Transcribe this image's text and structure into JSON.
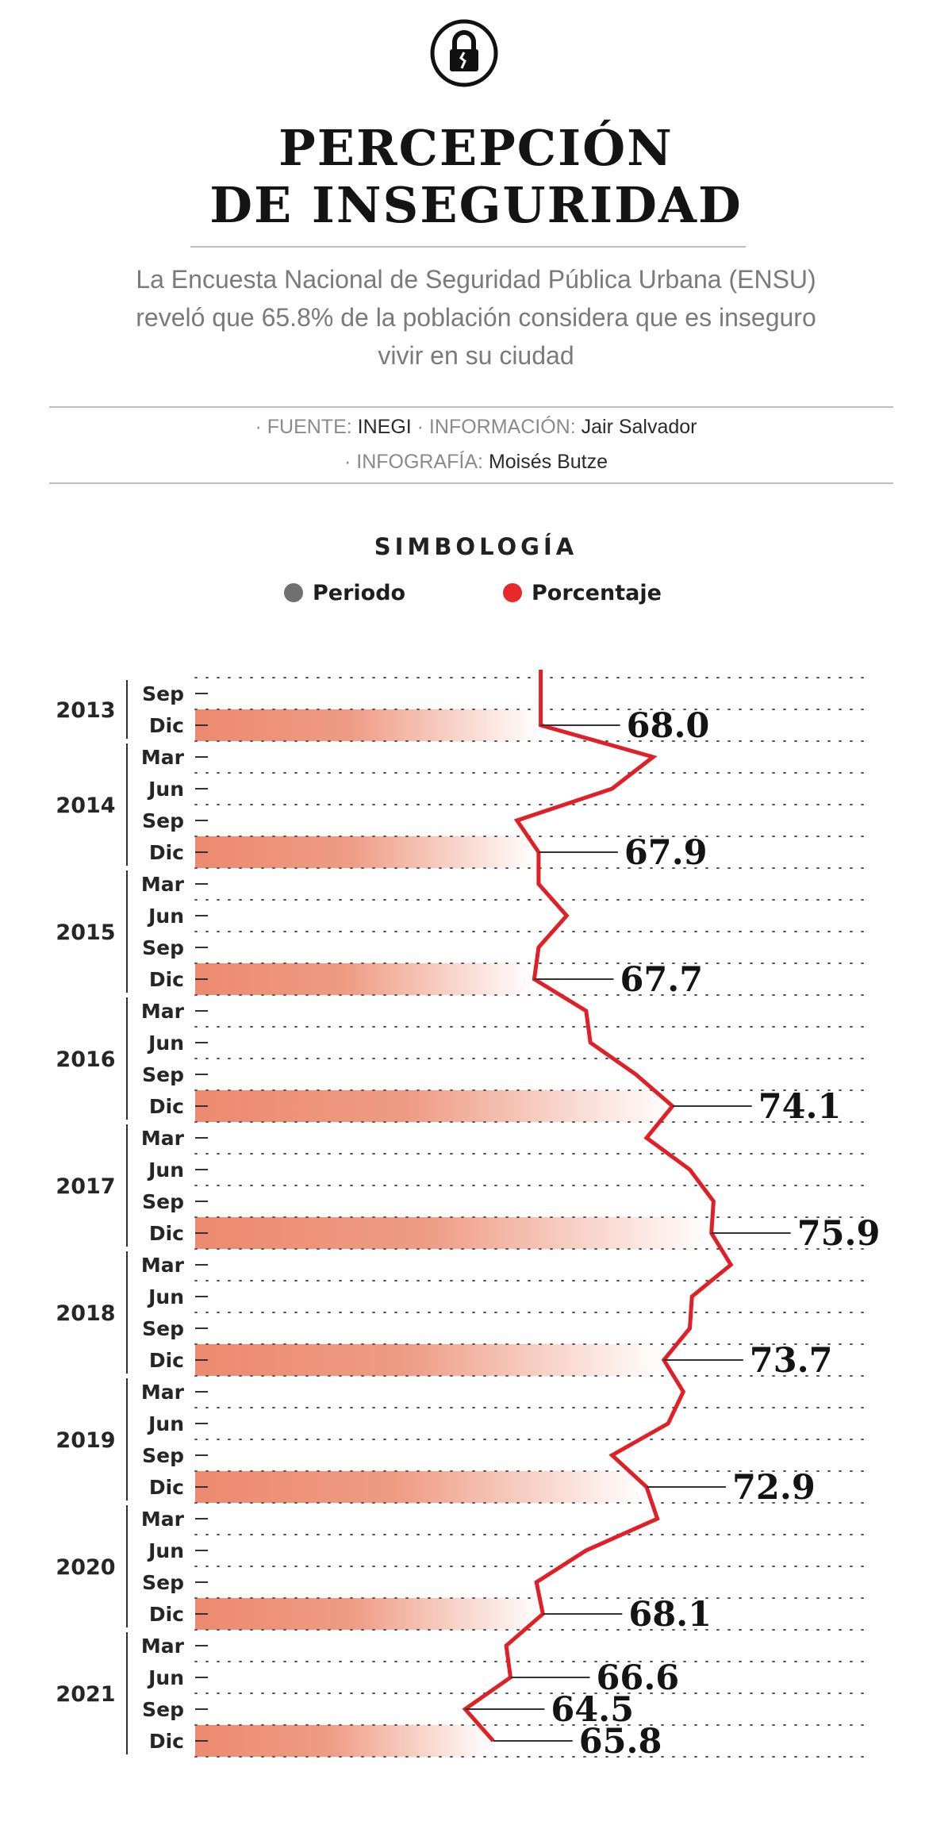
{
  "header": {
    "title_line1": "PERCEPCIÓN",
    "title_line2": "DE INSEGURIDAD",
    "subtitle": "La Encuesta Nacional de Seguridad Pública Urbana (ENSU) reveló que 65.8% de la población considera que es inseguro vivir en su ciudad",
    "logo_icon": "padlock-icon"
  },
  "credits": {
    "line1": [
      {
        "k": "· FUENTE: ",
        "v": "INEGI"
      },
      {
        "k": " · INFORMACIÓN: ",
        "v": "Jair Salvador"
      }
    ],
    "line2": [
      {
        "k": "· INFOGRAFÍA: ",
        "v": "Moisés Butze"
      }
    ]
  },
  "legend": {
    "title": "SIMBOLOGÍA",
    "items": [
      {
        "label": "Periodo",
        "color": "#707070"
      },
      {
        "label": "Porcentaje",
        "color": "#e8282b"
      }
    ]
  },
  "colors": {
    "line": "#e01f26",
    "bar": "#ec8a6f",
    "grid_dots": "#555555"
  },
  "chart_data": {
    "type": "line",
    "orientation": "vertical",
    "x_min": 52,
    "x_max": 83,
    "periods": [
      {
        "year": "2013",
        "month": "Sep",
        "value": 68.0
      },
      {
        "year": "2013",
        "month": "Dic",
        "value": 68.0
      },
      {
        "year": "2014",
        "month": "Mar",
        "value": 73.2
      },
      {
        "year": "2014",
        "month": "Jun",
        "value": 71.3
      },
      {
        "year": "2014",
        "month": "Sep",
        "value": 66.9
      },
      {
        "year": "2014",
        "month": "Dic",
        "value": 67.9
      },
      {
        "year": "2015",
        "month": "Mar",
        "value": 67.9
      },
      {
        "year": "2015",
        "month": "Jun",
        "value": 69.2
      },
      {
        "year": "2015",
        "month": "Sep",
        "value": 67.9
      },
      {
        "year": "2015",
        "month": "Dic",
        "value": 67.7
      },
      {
        "year": "2016",
        "month": "Mar",
        "value": 70.1
      },
      {
        "year": "2016",
        "month": "Jun",
        "value": 70.3
      },
      {
        "year": "2016",
        "month": "Sep",
        "value": 72.4
      },
      {
        "year": "2016",
        "month": "Dic",
        "value": 74.1
      },
      {
        "year": "2017",
        "month": "Mar",
        "value": 72.9
      },
      {
        "year": "2017",
        "month": "Jun",
        "value": 74.9
      },
      {
        "year": "2017",
        "month": "Sep",
        "value": 76.0
      },
      {
        "year": "2017",
        "month": "Dic",
        "value": 75.9
      },
      {
        "year": "2018",
        "month": "Mar",
        "value": 76.8
      },
      {
        "year": "2018",
        "month": "Jun",
        "value": 75.0
      },
      {
        "year": "2018",
        "month": "Sep",
        "value": 74.9
      },
      {
        "year": "2018",
        "month": "Dic",
        "value": 73.7
      },
      {
        "year": "2019",
        "month": "Mar",
        "value": 74.6
      },
      {
        "year": "2019",
        "month": "Jun",
        "value": 73.9
      },
      {
        "year": "2019",
        "month": "Sep",
        "value": 71.3
      },
      {
        "year": "2019",
        "month": "Dic",
        "value": 72.9
      },
      {
        "year": "2020",
        "month": "Mar",
        "value": 73.4
      },
      {
        "year": "2020",
        "month": "Jun",
        "value": 70.1
      },
      {
        "year": "2020",
        "month": "Sep",
        "value": 67.8
      },
      {
        "year": "2020",
        "month": "Dic",
        "value": 68.1
      },
      {
        "year": "2021",
        "month": "Mar",
        "value": 66.4
      },
      {
        "year": "2021",
        "month": "Jun",
        "value": 66.6
      },
      {
        "year": "2021",
        "month": "Sep",
        "value": 64.5
      },
      {
        "year": "2021",
        "month": "Dic",
        "value": 65.8
      }
    ],
    "labeled_values": [
      {
        "year": "2013",
        "month": "Dic",
        "label": "68.0"
      },
      {
        "year": "2014",
        "month": "Dic",
        "label": "67.9"
      },
      {
        "year": "2015",
        "month": "Dic",
        "label": "67.7"
      },
      {
        "year": "2016",
        "month": "Dic",
        "label": "74.1"
      },
      {
        "year": "2017",
        "month": "Dic",
        "label": "75.9"
      },
      {
        "year": "2018",
        "month": "Dic",
        "label": "73.7"
      },
      {
        "year": "2019",
        "month": "Dic",
        "label": "72.9"
      },
      {
        "year": "2020",
        "month": "Dic",
        "label": "68.1"
      },
      {
        "year": "2021",
        "month": "Jun",
        "label": "66.6"
      },
      {
        "year": "2021",
        "month": "Sep",
        "label": "64.5"
      },
      {
        "year": "2021",
        "month": "Dic",
        "label": "65.8"
      }
    ],
    "highlighted_period": "Dic",
    "years": [
      "2013",
      "2014",
      "2015",
      "2016",
      "2017",
      "2018",
      "2019",
      "2020",
      "2021"
    ],
    "grid": true
  }
}
